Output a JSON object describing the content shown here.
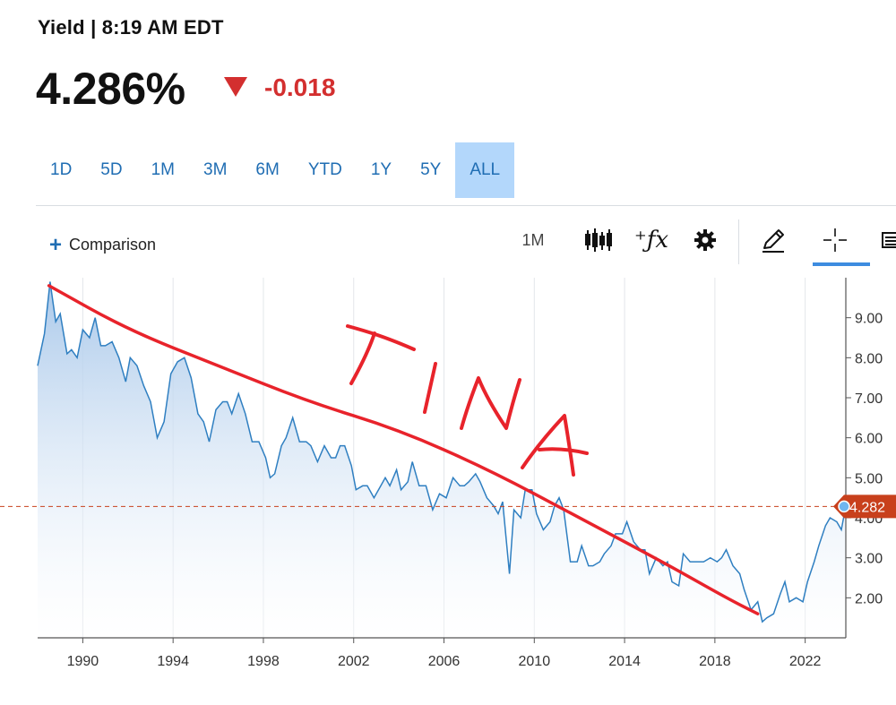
{
  "header": {
    "title": "Yield | 8:19 AM EDT",
    "price": "4.286%",
    "change": "-0.018",
    "change_color": "#d32f2f"
  },
  "ranges": {
    "items": [
      "1D",
      "5D",
      "1M",
      "3M",
      "6M",
      "YTD",
      "1Y",
      "5Y",
      "ALL"
    ],
    "active": "ALL"
  },
  "toolbar": {
    "comparison_label": "Comparison",
    "interval_label": "1M",
    "icons": [
      "candlestick-icon",
      "function-icon",
      "gear-icon",
      "pencil-icon",
      "crosshair-icon",
      "menu-icon"
    ]
  },
  "annotation": {
    "text": "TINA",
    "color": "#e8232b"
  },
  "chart_data": {
    "type": "area",
    "line_color": "#2f7fc1",
    "fill_top": "#a9c8ea",
    "ylim": [
      1.0,
      10.0
    ],
    "yticks": [
      "2.00",
      "3.00",
      "4.00",
      "5.00",
      "6.00",
      "7.00",
      "8.00",
      "9.00"
    ],
    "xlim": [
      1988.0,
      2023.8
    ],
    "xticks": [
      "1990",
      "1994",
      "1998",
      "2002",
      "2006",
      "2010",
      "2014",
      "2018",
      "2022"
    ],
    "current_value_label": "4.282",
    "current_value": 4.282,
    "marker_color": "#c8401c",
    "x": [
      1988.0,
      1988.3,
      1988.55,
      1988.8,
      1989.0,
      1989.3,
      1989.5,
      1989.75,
      1990.0,
      1990.3,
      1990.55,
      1990.8,
      1991.0,
      1991.3,
      1991.6,
      1991.9,
      1992.1,
      1992.4,
      1992.7,
      1993.0,
      1993.3,
      1993.6,
      1993.9,
      1994.2,
      1994.5,
      1994.8,
      1995.1,
      1995.35,
      1995.6,
      1995.9,
      1996.2,
      1996.4,
      1996.6,
      1996.9,
      1997.2,
      1997.5,
      1997.8,
      1998.1,
      1998.3,
      1998.5,
      1998.8,
      1999.0,
      1999.3,
      1999.6,
      1999.9,
      2000.1,
      2000.4,
      2000.7,
      2001.0,
      2001.2,
      2001.4,
      2001.6,
      2001.9,
      2002.1,
      2002.4,
      2002.6,
      2002.9,
      2003.2,
      2003.4,
      2003.6,
      2003.9,
      2004.1,
      2004.4,
      2004.6,
      2004.9,
      2005.2,
      2005.5,
      2005.8,
      2006.1,
      2006.4,
      2006.7,
      2006.9,
      2007.1,
      2007.4,
      2007.6,
      2007.9,
      2008.2,
      2008.4,
      2008.6,
      2008.9,
      2009.1,
      2009.4,
      2009.6,
      2009.9,
      2010.1,
      2010.4,
      2010.7,
      2010.9,
      2011.1,
      2011.3,
      2011.6,
      2011.9,
      2012.1,
      2012.4,
      2012.6,
      2012.9,
      2013.1,
      2013.4,
      2013.6,
      2013.9,
      2014.1,
      2014.4,
      2014.7,
      2014.9,
      2015.1,
      2015.4,
      2015.7,
      2015.9,
      2016.1,
      2016.4,
      2016.6,
      2016.9,
      2017.2,
      2017.5,
      2017.8,
      2018.1,
      2018.3,
      2018.5,
      2018.8,
      2019.1,
      2019.3,
      2019.6,
      2019.9,
      2020.1,
      2020.3,
      2020.6,
      2020.9,
      2021.1,
      2021.3,
      2021.6,
      2021.9,
      2022.1,
      2022.4,
      2022.6,
      2022.9,
      2023.1,
      2023.4,
      2023.6,
      2023.8
    ],
    "values": [
      7.8,
      8.6,
      9.9,
      8.9,
      9.1,
      8.1,
      8.2,
      8.0,
      8.7,
      8.5,
      9.0,
      8.3,
      8.3,
      8.4,
      8.0,
      7.4,
      8.0,
      7.8,
      7.3,
      6.9,
      6.0,
      6.4,
      7.6,
      7.9,
      8.0,
      7.5,
      6.6,
      6.4,
      5.9,
      6.7,
      6.9,
      6.9,
      6.6,
      7.1,
      6.6,
      5.9,
      5.9,
      5.5,
      5.0,
      5.1,
      5.8,
      6.0,
      6.5,
      5.9,
      5.9,
      5.8,
      5.4,
      5.8,
      5.5,
      5.5,
      5.8,
      5.8,
      5.3,
      4.7,
      4.8,
      4.8,
      4.5,
      4.8,
      5.0,
      4.8,
      5.2,
      4.7,
      4.9,
      5.4,
      4.8,
      4.8,
      4.2,
      4.6,
      4.5,
      5.0,
      4.8,
      4.8,
      4.9,
      5.1,
      4.9,
      4.5,
      4.3,
      4.1,
      4.4,
      2.6,
      4.2,
      4.0,
      4.7,
      4.7,
      4.1,
      3.7,
      3.9,
      4.3,
      4.5,
      4.2,
      2.9,
      2.9,
      3.3,
      2.8,
      2.8,
      2.9,
      3.1,
      3.3,
      3.6,
      3.6,
      3.9,
      3.4,
      3.2,
      3.2,
      2.6,
      3.0,
      2.8,
      2.9,
      2.4,
      2.3,
      3.1,
      2.9,
      2.9,
      2.9,
      3.0,
      2.9,
      3.0,
      3.2,
      2.8,
      2.6,
      2.2,
      1.7,
      1.9,
      1.4,
      1.5,
      1.6,
      2.1,
      2.4,
      1.9,
      2.0,
      1.9,
      2.4,
      2.9,
      3.3,
      3.8,
      4.0,
      3.9,
      3.7,
      4.3
    ],
    "trend_x": [
      1988.5,
      1992.0,
      1996.0,
      2000.0,
      2004.0,
      2008.0,
      2012.0,
      2016.0,
      2018.5,
      2019.9
    ],
    "trend_values": [
      9.8,
      8.7,
      7.8,
      6.9,
      6.2,
      5.2,
      4.0,
      2.8,
      2.0,
      1.6
    ]
  }
}
